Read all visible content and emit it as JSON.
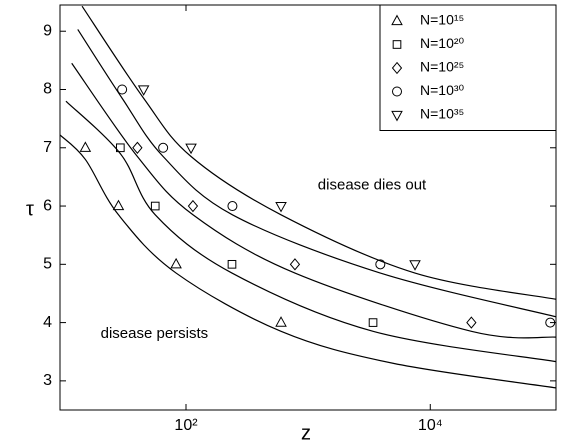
{
  "chart_data": {
    "type": "scatter",
    "x_label": "z",
    "y_label": "τ",
    "x_log": true,
    "xlim": [
      9.3,
      107000
    ],
    "ylim": [
      2.5,
      9.45
    ],
    "xticks": [
      {
        "value": 100,
        "label": "10²"
      },
      {
        "value": 10000,
        "label": "10⁴"
      }
    ],
    "yticks": [
      3,
      4,
      5,
      6,
      7,
      8,
      9
    ],
    "grid": false,
    "legend": "upper right",
    "annotations": [
      {
        "text": "disease dies out",
        "x": 1200,
        "y": 6.35
      },
      {
        "text": "disease persists",
        "x": 20,
        "y": 3.8
      }
    ],
    "series": [
      {
        "name": "N=10¹⁵",
        "marker": "triangle-up",
        "color": "#000000",
        "x": [
          15,
          28,
          83,
          600
        ],
        "values": [
          7,
          6,
          5,
          4
        ]
      },
      {
        "name": "N=10²⁰",
        "marker": "square",
        "color": "#000000",
        "x": [
          29,
          56,
          238,
          3400
        ],
        "values": [
          7,
          6,
          5,
          4
        ]
      },
      {
        "name": "N=10²⁵",
        "marker": "diamond",
        "color": "#000000",
        "x": [
          40,
          114,
          780,
          21700
        ],
        "values": [
          7,
          6,
          5,
          4
        ]
      },
      {
        "name": "N=10³⁰",
        "marker": "circle",
        "color": "#000000",
        "x": [
          30,
          65,
          240,
          3900,
          96000
        ],
        "values": [
          8,
          7,
          6,
          5,
          4
        ]
      },
      {
        "name": "N=10³⁵",
        "marker": "triangle-down",
        "color": "#000000",
        "x": [
          45,
          110,
          600,
          7500
        ],
        "values": [
          8,
          7,
          6,
          5
        ]
      }
    ],
    "curves": [
      {
        "color": "#000000",
        "x": [
          9.3,
          15,
          28,
          83,
          600,
          5000,
          107000
        ],
        "values": [
          7.22,
          6.8,
          5.85,
          4.85,
          3.85,
          3.3,
          2.88
        ]
      },
      {
        "color": "#000000",
        "x": [
          10.4,
          29,
          56,
          238,
          3400,
          107000
        ],
        "values": [
          7.8,
          6.9,
          5.85,
          4.85,
          3.85,
          3.33
        ]
      },
      {
        "color": "#000000",
        "x": [
          11.6,
          40,
          114,
          780,
          21700,
          107000
        ],
        "values": [
          8.45,
          6.85,
          5.85,
          4.85,
          3.85,
          3.75
        ]
      },
      {
        "color": "#000000",
        "x": [
          13,
          30,
          65,
          240,
          3900,
          107000
        ],
        "values": [
          9.03,
          7.85,
          6.85,
          5.85,
          4.85,
          4.1
        ]
      },
      {
        "color": "#000000",
        "x": [
          14.1,
          45,
          110,
          600,
          7500,
          107000
        ],
        "values": [
          9.43,
          7.85,
          6.85,
          5.85,
          4.85,
          4.4
        ]
      }
    ]
  }
}
